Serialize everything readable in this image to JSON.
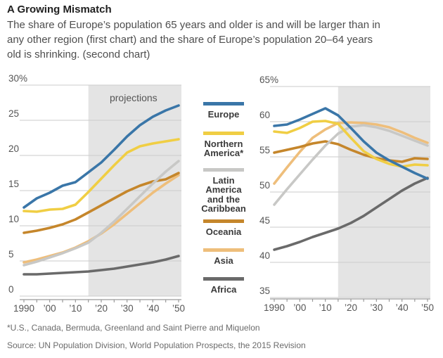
{
  "header": {
    "title": "A Growing Mismatch",
    "subtitle_lines": [
      "The share of Europe’s population 65 years and older is and will be larger than in",
      "any other region (first chart) and the share of Europe’s population 20–64 years",
      "old is shrinking. (second chart)"
    ]
  },
  "colors": {
    "europe": "#3A76A8",
    "northern_america": "#F0CE44",
    "latin_america": "#C8C8C6",
    "oceania": "#C5862B",
    "asia": "#EEBE7B",
    "africa": "#6A6A6A",
    "projection_bg": "#E4E4E4",
    "gridline": "#CBCBCB",
    "axis_line": "#9A9A9A",
    "axis_text": "#555555",
    "projection_text": "#555555"
  },
  "legend": [
    {
      "key": "europe",
      "color": "#3A76A8",
      "label_lines": [
        "Europe"
      ]
    },
    {
      "key": "northern-america",
      "color": "#F0CE44",
      "label_lines": [
        "Northern",
        "America*"
      ]
    },
    {
      "key": "latin-america",
      "color": "#C8C8C6",
      "label_lines": [
        "Latin",
        "America",
        "and the",
        "Caribbean"
      ]
    },
    {
      "key": "oceania",
      "color": "#C5862B",
      "label_lines": [
        "Oceania"
      ]
    },
    {
      "key": "asia",
      "color": "#EEBE7B",
      "label_lines": [
        "Asia"
      ]
    },
    {
      "key": "africa",
      "color": "#6A6A6A",
      "label_lines": [
        "Africa"
      ]
    }
  ],
  "chart_data": [
    {
      "type": "line",
      "name": "share-of-population-65-and-older",
      "top_axis_label": "30%",
      "projections_label": "projections",
      "projection_start_year": 2015,
      "grid": true,
      "ylim": [
        0,
        30
      ],
      "ytick_step": 5,
      "x": [
        1990,
        1995,
        2000,
        2005,
        2010,
        2015,
        2020,
        2025,
        2030,
        2035,
        2040,
        2045,
        2050
      ],
      "x_ticks": [
        {
          "year": 1990,
          "label": "1990"
        },
        {
          "year": 2000,
          "label": "’00"
        },
        {
          "year": 2010,
          "label": "’10"
        },
        {
          "year": 2020,
          "label": "’20"
        },
        {
          "year": 2030,
          "label": "’30"
        },
        {
          "year": 2040,
          "label": "’40"
        },
        {
          "year": 2050,
          "label": "’50"
        }
      ],
      "series": [
        {
          "key": "asia",
          "name": "Asia",
          "color": "#EEBE7B",
          "values": [
            4.8,
            5.2,
            5.7,
            6.2,
            6.9,
            7.8,
            8.9,
            10.2,
            11.7,
            13.2,
            14.7,
            16.0,
            17.2
          ]
        },
        {
          "key": "oceania",
          "name": "Oceania",
          "color": "#C5862B",
          "values": [
            9.0,
            9.3,
            9.7,
            10.2,
            10.9,
            11.9,
            12.9,
            13.9,
            14.9,
            15.7,
            16.3,
            16.6,
            17.5
          ]
        },
        {
          "key": "latin-america",
          "name": "Latin America and the Caribbean",
          "color": "#C8C8C6",
          "values": [
            4.4,
            4.9,
            5.5,
            6.1,
            6.8,
            7.6,
            9.0,
            10.6,
            12.4,
            14.2,
            16.0,
            17.7,
            19.2
          ]
        },
        {
          "key": "northern-america",
          "name": "Northern America",
          "color": "#F0CE44",
          "values": [
            12.1,
            12.0,
            12.3,
            12.4,
            13.0,
            14.8,
            16.7,
            18.6,
            20.4,
            21.3,
            21.7,
            22.0,
            22.3
          ]
        },
        {
          "key": "africa",
          "name": "Africa",
          "color": "#6A6A6A",
          "values": [
            3.1,
            3.1,
            3.2,
            3.3,
            3.4,
            3.5,
            3.7,
            3.9,
            4.2,
            4.5,
            4.8,
            5.2,
            5.7
          ]
        },
        {
          "key": "europe",
          "name": "Europe",
          "color": "#3A76A8",
          "values": [
            12.6,
            13.9,
            14.7,
            15.7,
            16.2,
            17.6,
            19.0,
            20.8,
            22.7,
            24.3,
            25.5,
            26.4,
            27.1
          ]
        }
      ]
    },
    {
      "type": "line",
      "name": "share-of-population-20-64",
      "top_axis_label": "65%",
      "projections_label": "",
      "projection_start_year": 2015,
      "grid": true,
      "ylim": [
        35,
        65
      ],
      "ytick_step": 5,
      "x": [
        1990,
        1995,
        2000,
        2005,
        2010,
        2015,
        2020,
        2025,
        2030,
        2035,
        2040,
        2045,
        2050
      ],
      "x_ticks": [
        {
          "year": 1990,
          "label": "1990"
        },
        {
          "year": 2000,
          "label": "’00"
        },
        {
          "year": 2010,
          "label": "’10"
        },
        {
          "year": 2020,
          "label": "’20"
        },
        {
          "year": 2030,
          "label": "’30"
        },
        {
          "year": 2040,
          "label": "’40"
        },
        {
          "year": 2050,
          "label": "’50"
        }
      ],
      "series": [
        {
          "key": "asia",
          "name": "Asia",
          "color": "#EEBE7B",
          "values": [
            51.2,
            53.5,
            55.7,
            57.7,
            58.9,
            59.8,
            59.9,
            59.8,
            59.6,
            59.2,
            58.5,
            57.7,
            57.0
          ]
        },
        {
          "key": "oceania",
          "name": "Oceania",
          "color": "#C5862B",
          "values": [
            55.6,
            56.0,
            56.4,
            56.9,
            57.2,
            56.8,
            56.0,
            55.3,
            54.8,
            54.5,
            54.3,
            54.8,
            54.7
          ]
        },
        {
          "key": "latin-america",
          "name": "Latin America and the Caribbean",
          "color": "#C8C8C6",
          "values": [
            48.2,
            50.4,
            52.5,
            54.6,
            56.6,
            58.3,
            59.3,
            59.5,
            59.2,
            58.7,
            58.0,
            57.3,
            56.6
          ]
        },
        {
          "key": "northern-america",
          "name": "Northern America",
          "color": "#F0CE44",
          "values": [
            58.6,
            58.4,
            59.1,
            60.0,
            60.1,
            59.7,
            57.7,
            55.8,
            54.7,
            54.0,
            53.6,
            53.9,
            53.8
          ]
        },
        {
          "key": "africa",
          "name": "Africa",
          "color": "#6A6A6A",
          "values": [
            41.8,
            42.3,
            42.9,
            43.6,
            44.2,
            44.8,
            45.6,
            46.6,
            47.8,
            49.0,
            50.2,
            51.2,
            52.0
          ]
        },
        {
          "key": "europe",
          "name": "Europe",
          "color": "#3A76A8",
          "values": [
            59.4,
            59.6,
            60.3,
            61.1,
            61.9,
            60.9,
            59.1,
            57.2,
            55.6,
            54.5,
            53.6,
            52.7,
            51.9
          ]
        }
      ]
    }
  ],
  "footnote": "*U.S., Canada, Bermuda, Greenland and Saint Pierre and Miquelon",
  "source": "Source: UN Population Division, World Population Prospects, the 2015 Revision"
}
